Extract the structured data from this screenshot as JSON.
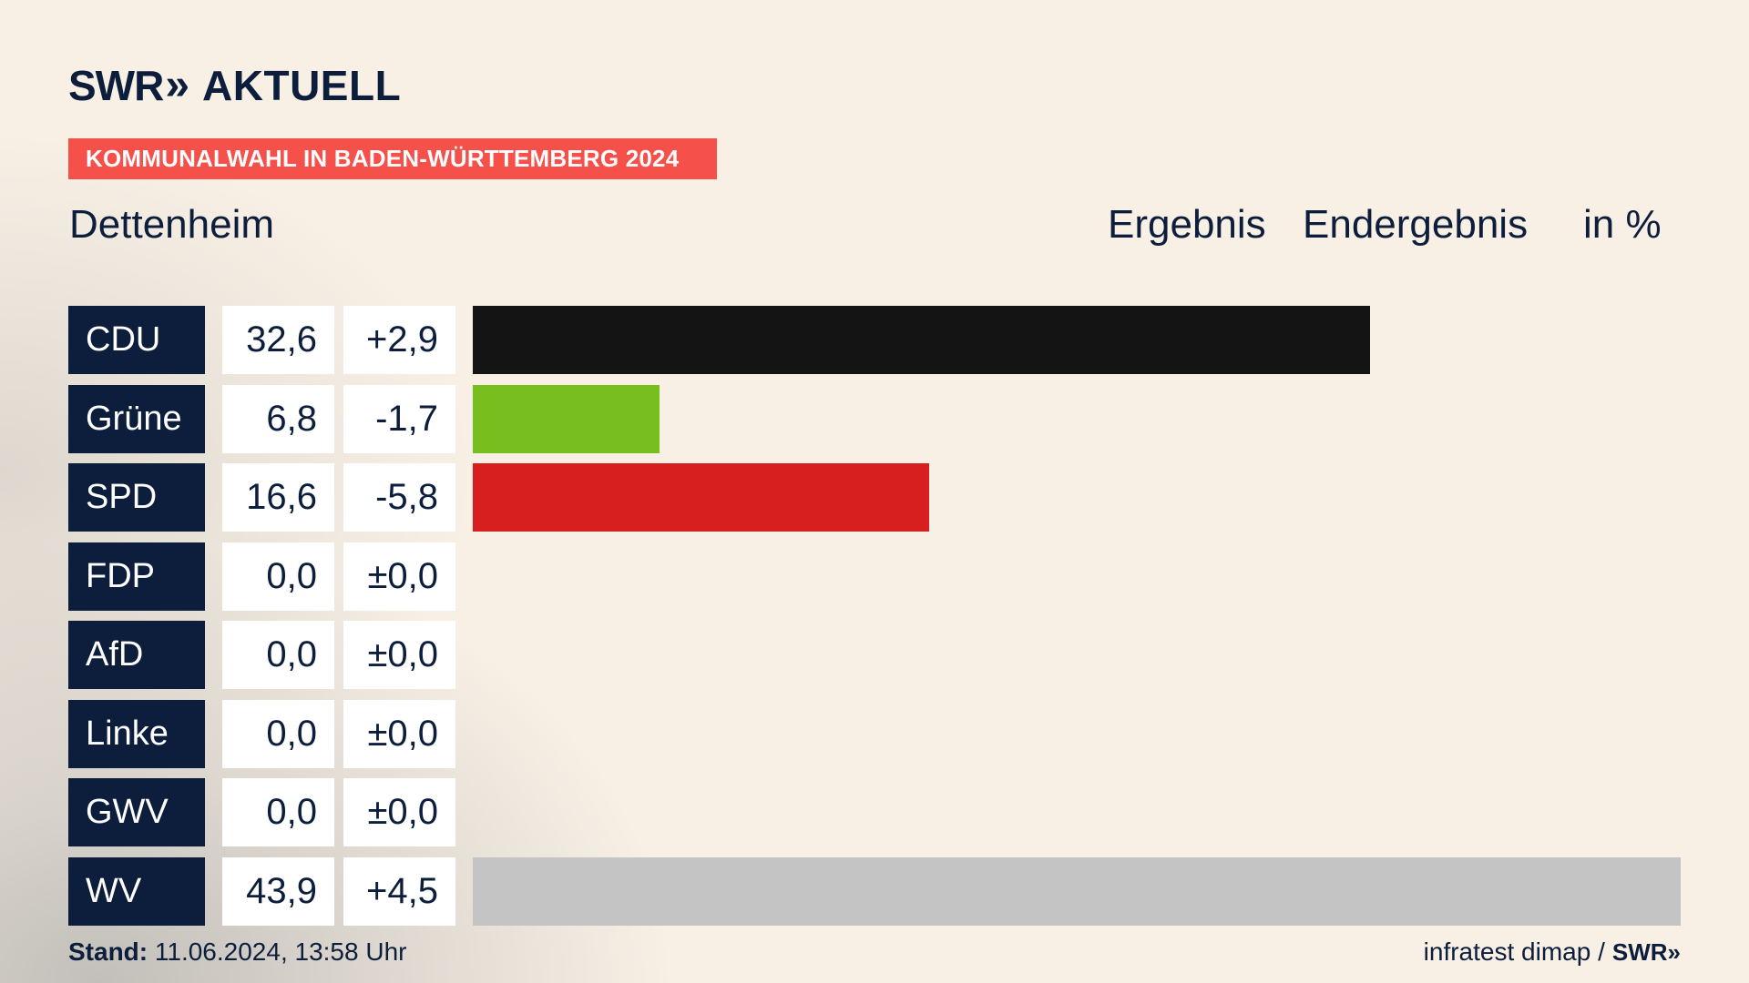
{
  "brand": {
    "name": "SWR",
    "chevrons": "»",
    "product": "AKTUELL",
    "color": "#0c1e3c"
  },
  "banner": {
    "label": "KOMMUNALWAHL IN BADEN-WÜRTTEMBERG 2024",
    "color": "#f6504a"
  },
  "place": "Dettenheim",
  "header": {
    "col1": "Ergebnis",
    "col2": "Endergebnis",
    "col3": "in %"
  },
  "footer": {
    "stand_label": "Stand:",
    "stand_value": "11.06.2024, 13:58 Uhr",
    "source": "infratest dimap /",
    "source_brand": "SWR",
    "source_chevrons": "»"
  },
  "chart_data": {
    "type": "bar",
    "orientation": "horizontal",
    "categories": [
      "CDU",
      "Grüne",
      "SPD",
      "FDP",
      "AfD",
      "Linke",
      "GWV",
      "WV"
    ],
    "values": [
      32.6,
      6.8,
      16.6,
      0.0,
      0.0,
      0.0,
      0.0,
      43.9
    ],
    "value_labels": [
      "32,6",
      "6,8",
      "16,6",
      "0,0",
      "0,0",
      "0,0",
      "0,0",
      "43,9"
    ],
    "diff_labels": [
      "+2,9",
      "-1,7",
      "-5,8",
      "±0,0",
      "±0,0",
      "±0,0",
      "±0,0",
      "+4,5"
    ],
    "colors": [
      "#141414",
      "#78be1e",
      "#d71f1f",
      "#ffe600",
      "#009ee0",
      "#be3075",
      "#8a8a8a",
      "#c4c4c4"
    ],
    "xlim": [
      0,
      43.9
    ]
  }
}
